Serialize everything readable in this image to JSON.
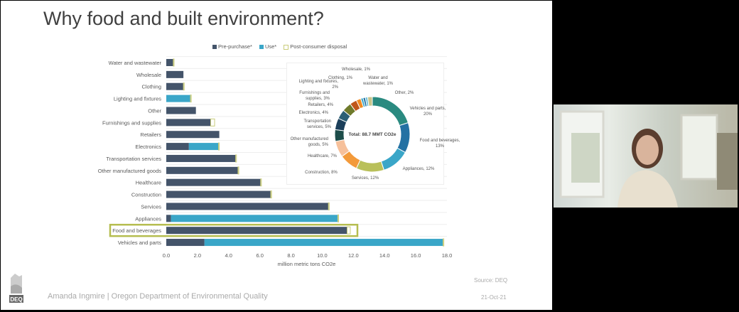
{
  "slide": {
    "title": "Why food and built environment?",
    "footer": "Amanda Ingmire | Oregon Department of Environmental Quality",
    "source": "Source: DEQ",
    "date": "21-Oct-21",
    "logo_text": "DEQ"
  },
  "chart_data": [
    {
      "type": "bar",
      "orientation": "horizontal",
      "stacked": true,
      "categories": [
        "Water and wastewater",
        "Wholesale",
        "Clothing",
        "Lighting and fixtures",
        "Other",
        "Furnishings and supplies",
        "Retailers",
        "Electronics",
        "Transportation services",
        "Other manufactured goods",
        "Healthcare",
        "Construction",
        "Services",
        "Appliances",
        "Food and beverages",
        "Vehicles and parts"
      ],
      "series": [
        {
          "name": "Pre-purchase*",
          "color": "#44546a",
          "values": [
            0.45,
            1.1,
            1.1,
            0,
            1.9,
            2.85,
            3.4,
            1.45,
            4.45,
            4.6,
            6.05,
            6.7,
            10.4,
            0.3,
            11.6,
            2.45
          ]
        },
        {
          "name": "Use*",
          "color": "#3aa6c8",
          "values": [
            0,
            0,
            0,
            1.55,
            0,
            0,
            0,
            1.9,
            0,
            0,
            0,
            0,
            0,
            10.7,
            0,
            15.3
          ]
        },
        {
          "name": "Post-consumer disposal",
          "color": "#ffffff",
          "stroke": "#c9cc7a",
          "values": [
            0.05,
            0,
            0.05,
            0.05,
            0,
            0.25,
            0,
            0.05,
            0.05,
            0.05,
            0.05,
            0.05,
            0.05,
            0.05,
            0.2,
            0.05
          ]
        }
      ],
      "xlabel": "million metric tons CO2e",
      "xlim": [
        0,
        18
      ],
      "xticks": [
        "0.0",
        "2.0",
        "4.0",
        "6.0",
        "8.0",
        "10.0",
        "12.0",
        "14.0",
        "16.0",
        "18.0"
      ],
      "grid": true,
      "legend": "top",
      "highlighted_category": "Food and beverages",
      "highlight_color": "#b5bd4f"
    },
    {
      "type": "pie",
      "donut": true,
      "center_label": "Total: 88.7 MMT CO2e",
      "slices": [
        {
          "label": "Vehicles and parts, 20%",
          "value": 20,
          "color": "#2a8a80"
        },
        {
          "label": "Food and beverages, 13%",
          "value": 13,
          "color": "#2471a3"
        },
        {
          "label": "Appliances, 12%",
          "value": 12,
          "color": "#3aa6c8"
        },
        {
          "label": "Services, 12%",
          "value": 12,
          "color": "#b9c05a"
        },
        {
          "label": "Construction, 8%",
          "value": 8,
          "color": "#f39a3a"
        },
        {
          "label": "Healthcare, 7%",
          "value": 7,
          "color": "#f6c09a"
        },
        {
          "label": "Other manufactured goods, 5%",
          "value": 5,
          "color": "#1d4d4a"
        },
        {
          "label": "Transportation services, 5%",
          "value": 5,
          "color": "#1b3f5a"
        },
        {
          "label": "Electronics, 4%",
          "value": 4,
          "color": "#2b5f75"
        },
        {
          "label": "Retailers, 4%",
          "value": 4,
          "color": "#6f7a2b"
        },
        {
          "label": "Furnishings and supplies, 3%",
          "value": 3,
          "color": "#c0571a"
        },
        {
          "label": "Lighting and fixtures, 2%",
          "value": 2,
          "color": "#f28a20"
        },
        {
          "label": "Clothing, 1%",
          "value": 1,
          "color": "#3aa6c8"
        },
        {
          "label": "Wholesale, 1%",
          "value": 1,
          "color": "#2471a3"
        },
        {
          "label": "Water and wastewater, 1%",
          "value": 1,
          "color": "#6fc0d8"
        },
        {
          "label": "Other, 2%",
          "value": 2,
          "color": "#c9c48a"
        }
      ]
    }
  ]
}
